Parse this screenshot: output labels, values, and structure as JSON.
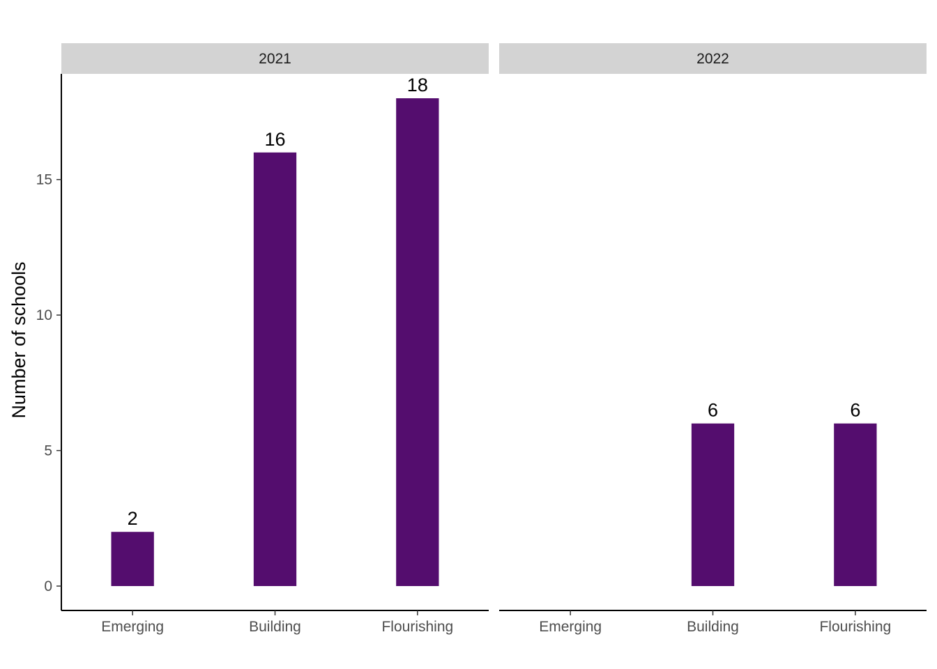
{
  "chart_data": {
    "type": "bar",
    "facet_by": "year",
    "categories": [
      "Emerging",
      "Building",
      "Flourishing"
    ],
    "facets": [
      {
        "label": "2021",
        "values": [
          2,
          16,
          18
        ]
      },
      {
        "label": "2022",
        "values": [
          0,
          6,
          6
        ]
      }
    ],
    "ylabel": "Number of schools",
    "xlabel": "",
    "ylim": [
      -0.9,
      18.9
    ],
    "yticks": [
      0,
      5,
      10,
      15
    ],
    "bar_color": "#540d6e",
    "strip_color": "#d3d3d3",
    "grid": false
  }
}
